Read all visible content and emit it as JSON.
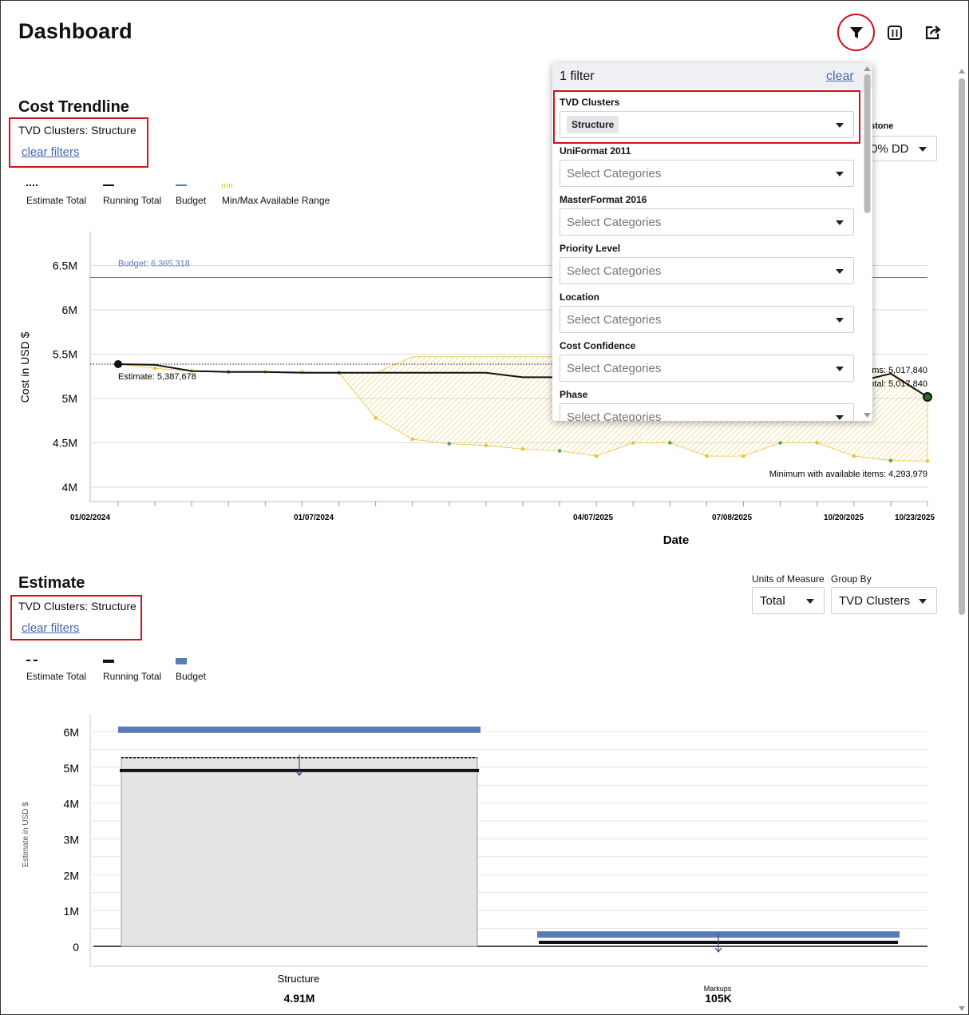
{
  "page": {
    "title": "Dashboard"
  },
  "toolbar": {
    "filter_icon": "filter-funnel-icon",
    "columns_icon": "columns-icon",
    "export_icon": "export-icon"
  },
  "trend": {
    "title": "Cost Trendline",
    "filter_text": "TVD Clusters: Structure",
    "clear_filters": "clear filters",
    "legend": [
      "Estimate Total",
      "Running Total",
      "Budget",
      "Min/Max Available Range"
    ],
    "milestone_label": "stone",
    "milestone_value": "0% DD"
  },
  "estimate": {
    "title": "Estimate",
    "filter_text": "TVD Clusters: Structure",
    "clear_filters": "clear filters",
    "legend": [
      "Estimate Total",
      "Running Total",
      "Budget"
    ],
    "units_label": "Units of Measure",
    "units_value": "Total",
    "group_label": "Group By",
    "group_value": "TVD Clusters"
  },
  "filter_panel": {
    "count_label": "1 filter",
    "clear_label": "clear",
    "groups": [
      {
        "label": "TVD Clusters",
        "value": "Structure"
      },
      {
        "label": "UniFormat 2011",
        "placeholder": "Select Categories"
      },
      {
        "label": "MasterFormat 2016",
        "placeholder": "Select Categories"
      },
      {
        "label": "Priority Level",
        "placeholder": "Select Categories"
      },
      {
        "label": "Location",
        "placeholder": "Select Categories"
      },
      {
        "label": "Cost Confidence",
        "placeholder": "Select Categories"
      },
      {
        "label": "Phase",
        "placeholder": "Select Categories"
      }
    ]
  },
  "colors": {
    "accent_red": "#d0121b",
    "budget_blue": "#5b78b8",
    "range_yellow": "#e8c23a",
    "link_blue": "#4a67ad"
  },
  "chart_data": [
    {
      "type": "line",
      "title": "Cost Trendline",
      "xlabel": "Date",
      "ylabel": "Cost in USD $",
      "y_ticks": [
        4000000,
        4500000,
        5000000,
        5500000,
        6000000,
        6500000
      ],
      "y_tick_labels": [
        "4M",
        "4.5M",
        "5M",
        "5.5M",
        "6M",
        "6.5M"
      ],
      "ylim": [
        3900000,
        6800000
      ],
      "x_tick_labels": [
        "01/02/2024",
        "01/07/2024",
        "04/07/2025",
        "07/08/2025",
        "10/20/2025",
        "10/23/2025"
      ],
      "budget": 6365318,
      "budget_label": "Budget: 6,365,318",
      "estimate_label": "Estimate: 5,387,678",
      "end_labels": [
        "ems: 5,017,840",
        "otal: 5,017,840"
      ],
      "min_label": "Minimum with available items: 4,293,979",
      "series": [
        {
          "name": "Estimate Total",
          "values": [
            5387678,
            5387678,
            5387678,
            5387678,
            5387678
          ]
        },
        {
          "name": "Running Total",
          "values": [
            5387678,
            5380000,
            5310000,
            5300000,
            5300000,
            5290000,
            5290000,
            5290000,
            5290000,
            5290000,
            5290000,
            5240000,
            5240000,
            5240000,
            5240000,
            5240000,
            5240000,
            5240000,
            5240000,
            5240000,
            5180000,
            5280000,
            5017840
          ]
        },
        {
          "name": "Min/Max Available Range",
          "max": [
            5387678,
            5380000,
            5310000,
            5300000,
            5300000,
            5300000,
            5290000,
            5290000,
            5470000,
            5470000,
            5470000,
            5470000,
            5470000,
            5300000,
            5300000,
            5300000,
            5300000,
            5300000,
            5300000,
            5300000,
            5300000,
            5300000,
            5017840
          ],
          "min": [
            5387678,
            5340000,
            5310000,
            5300000,
            5300000,
            5300000,
            5290000,
            4780000,
            4540000,
            4490000,
            4470000,
            4430000,
            4410000,
            4350000,
            4500000,
            4500000,
            4350000,
            4350000,
            4500000,
            4500000,
            4350000,
            4300000,
            4293979
          ]
        }
      ]
    },
    {
      "type": "bar",
      "title": "Estimate",
      "ylabel": "Estimate in USD $",
      "categories": [
        "Structure",
        "Markups"
      ],
      "category_value_labels": [
        "4.91M",
        "105K"
      ],
      "y_ticks": [
        0,
        1000000,
        2000000,
        3000000,
        4000000,
        5000000,
        6000000
      ],
      "y_tick_labels": [
        "0",
        "1M",
        "2M",
        "3M",
        "4M",
        "5M",
        "6M"
      ],
      "ylim": [
        -600000,
        6500000
      ],
      "series": [
        {
          "name": "Estimate Total",
          "values": [
            5270000,
            105000
          ]
        },
        {
          "name": "Running Total",
          "values": [
            4910000,
            105000
          ]
        },
        {
          "name": "Budget",
          "values": [
            6050000,
            330000
          ]
        }
      ]
    }
  ]
}
